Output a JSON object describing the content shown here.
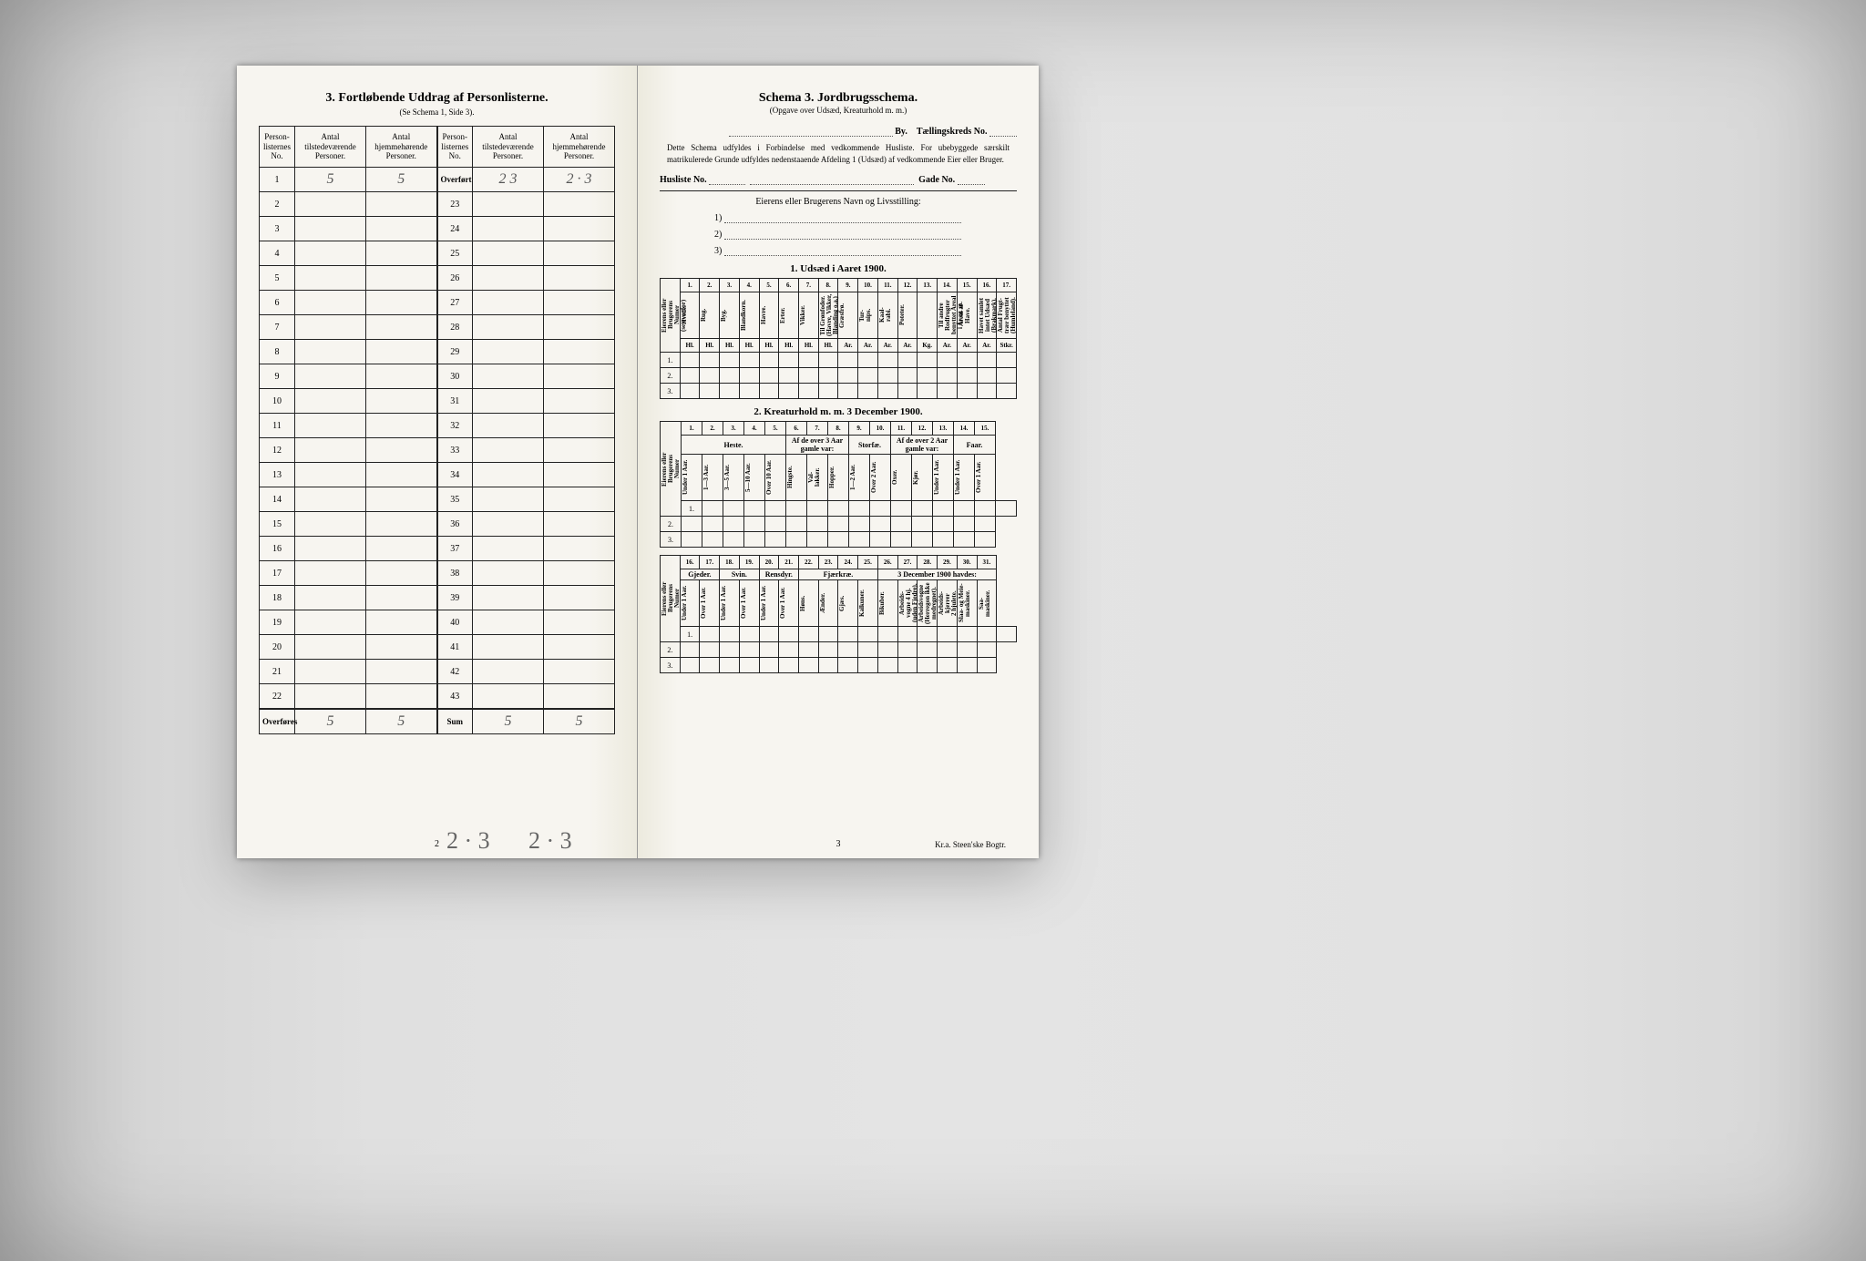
{
  "colors": {
    "paper": "#f7f5f0",
    "ink": "#222222",
    "pencil": "#666666",
    "background": "#c8c8c8"
  },
  "left_page": {
    "title_prefix": "3.",
    "title_main": "Fortløbende Uddrag af Personlisterne.",
    "subtitle": "(Se Schema 1, Side 3).",
    "headers": {
      "col1": "Person-\nlisternes\nNo.",
      "col2": "Antal\ntilstedeværende\nPersoner.",
      "col3": "Antal\nhjemmehørende\nPersoner.",
      "col4": "Person-\nlisternes\nNo.",
      "col5": "Antal\ntilstedeværende\nPersoner.",
      "col6": "Antal\nhjemmehørende\nPersoner."
    },
    "rows_left": [
      {
        "n": "1",
        "v1": "5",
        "v2": "5"
      },
      {
        "n": "2",
        "v1": "",
        "v2": ""
      },
      {
        "n": "3",
        "v1": "",
        "v2": ""
      },
      {
        "n": "4",
        "v1": "",
        "v2": ""
      },
      {
        "n": "5",
        "v1": "",
        "v2": ""
      },
      {
        "n": "6",
        "v1": "",
        "v2": ""
      },
      {
        "n": "7",
        "v1": "",
        "v2": ""
      },
      {
        "n": "8",
        "v1": "",
        "v2": ""
      },
      {
        "n": "9",
        "v1": "",
        "v2": ""
      },
      {
        "n": "10",
        "v1": "",
        "v2": ""
      },
      {
        "n": "11",
        "v1": "",
        "v2": ""
      },
      {
        "n": "12",
        "v1": "",
        "v2": ""
      },
      {
        "n": "13",
        "v1": "",
        "v2": ""
      },
      {
        "n": "14",
        "v1": "",
        "v2": ""
      },
      {
        "n": "15",
        "v1": "",
        "v2": ""
      },
      {
        "n": "16",
        "v1": "",
        "v2": ""
      },
      {
        "n": "17",
        "v1": "",
        "v2": ""
      },
      {
        "n": "18",
        "v1": "",
        "v2": ""
      },
      {
        "n": "19",
        "v1": "",
        "v2": ""
      },
      {
        "n": "20",
        "v1": "",
        "v2": ""
      },
      {
        "n": "21",
        "v1": "",
        "v2": ""
      },
      {
        "n": "22",
        "v1": "",
        "v2": ""
      }
    ],
    "rows_right": [
      {
        "n": "Overført",
        "v1": "2 3",
        "v2": "2 · 3"
      },
      {
        "n": "23",
        "v1": "",
        "v2": ""
      },
      {
        "n": "24",
        "v1": "",
        "v2": ""
      },
      {
        "n": "25",
        "v1": "",
        "v2": ""
      },
      {
        "n": "26",
        "v1": "",
        "v2": ""
      },
      {
        "n": "27",
        "v1": "",
        "v2": ""
      },
      {
        "n": "28",
        "v1": "",
        "v2": ""
      },
      {
        "n": "29",
        "v1": "",
        "v2": ""
      },
      {
        "n": "30",
        "v1": "",
        "v2": ""
      },
      {
        "n": "31",
        "v1": "",
        "v2": ""
      },
      {
        "n": "32",
        "v1": "",
        "v2": ""
      },
      {
        "n": "33",
        "v1": "",
        "v2": ""
      },
      {
        "n": "34",
        "v1": "",
        "v2": ""
      },
      {
        "n": "35",
        "v1": "",
        "v2": ""
      },
      {
        "n": "36",
        "v1": "",
        "v2": ""
      },
      {
        "n": "37",
        "v1": "",
        "v2": ""
      },
      {
        "n": "38",
        "v1": "",
        "v2": ""
      },
      {
        "n": "39",
        "v1": "",
        "v2": ""
      },
      {
        "n": "40",
        "v1": "",
        "v2": ""
      },
      {
        "n": "41",
        "v1": "",
        "v2": ""
      },
      {
        "n": "42",
        "v1": "",
        "v2": ""
      },
      {
        "n": "43",
        "v1": "",
        "v2": ""
      }
    ],
    "footer_left_label": "Overføres",
    "footer_left_v1": "5",
    "footer_left_v2": "5",
    "footer_right_label": "Sum",
    "footer_right_v1": "5",
    "footer_right_v2": "5",
    "margin_notes": {
      "a": "2 · 3",
      "b": "2 · 3"
    },
    "page_number": "2"
  },
  "right_page": {
    "title": "Schema 3.  Jordbrugsschema.",
    "subtitle": "(Opgave over Udsæd, Kreaturhold m. m.)",
    "by_label": "By.",
    "tk_label": "Tællingskreds No.",
    "paragraph": "Dette Schema udfyldes i Forbindelse med vedkommende Husliste. For ubebyggede særskilt matrikulerede Grunde udfyldes nedenstaaende Afdeling 1 (Udsæd) af vedkommende Eier eller Bruger.",
    "husliste_label": "Husliste No.",
    "gade_label": "Gade No.",
    "owner_heading": "Eierens eller Brugerens Navn og Livsstilling:",
    "owner_lines": [
      "1)",
      "2)",
      "3)"
    ],
    "section1_title": "1.  Udsæd i Aaret 1900.",
    "section2_title": "2.  Kreaturhold m. m. 3 December 1900.",
    "section1": {
      "row_stub": "Eierens eller\nBrugerens Numer\n(se ovenfor)",
      "col_nums": [
        "1.",
        "2.",
        "3.",
        "4.",
        "5.",
        "6.",
        "7.",
        "8.",
        "9.",
        "10.",
        "11.",
        "12.",
        "13.",
        "14.",
        "15.",
        "16.",
        "17."
      ],
      "cols": [
        "Hvede.",
        "Rug.",
        "Byg.",
        "Blandkorn.",
        "Havre.",
        "Erter.",
        "Vikker.",
        "Til Grønfoder.\n(Havre, Vikker,\nBlanding o.a.)",
        "Græsfrø.",
        "Tur-\nnips.",
        "Kaal-\nrabi.",
        "Poteter.",
        "",
        "Til andre Rodfrugter\nbenyttet Areal\ni Ar m. m.",
        "Areal af\nHave.",
        "Havet samlet\nintet Udsæd\n(Brakmark).",
        "Antal Frugt-\ntrær benyttet\n(Humleland)."
      ],
      "col12_label": "Andre Rodfrug-\nter.",
      "units": [
        "Hl.",
        "Hl.",
        "Hl.",
        "Hl.",
        "Hl.",
        "Hl.",
        "Hl.",
        "Hl.",
        "Ar.",
        "Ar.",
        "Ar.",
        "Ar.",
        "Kg.",
        "Ar.",
        "Ar.",
        "Ar.",
        "Stkr."
      ],
      "rows": [
        "1.",
        "2.",
        "3."
      ]
    },
    "section2a": {
      "row_stub": "Eierens eller\nBrugerens Numer",
      "col_nums": [
        "1.",
        "2.",
        "3.",
        "4.",
        "5.",
        "6.",
        "7.",
        "8.",
        "9.",
        "10.",
        "11.",
        "12.",
        "13.",
        "14.",
        "15."
      ],
      "group_heste": "Heste.",
      "group_afde": "Af de over 3 Aar\ngamle var:",
      "group_storfae": "Storfæ.",
      "group_afde2": "Af de over 2 Aar\ngamle var:",
      "group_faar": "Faar.",
      "cols": [
        "Under 1 Aar.",
        "1—3 Aar.",
        "3—5 Aar.",
        "5—10 Aar.",
        "Over 10 Aar.",
        "Hingste.",
        "Val-\nlakker.",
        "Hopper.",
        "1—2 Aar.",
        "Over 2 Aar.",
        "Oxer.",
        "Kjør.",
        "Under 1 Aar.",
        "Under 1 Aar.",
        "Over 1 Aar."
      ],
      "rows": [
        "1.",
        "2.",
        "3."
      ]
    },
    "section2b": {
      "row_stub": "Eierens eller\nBrugerens Numer",
      "col_nums": [
        "16.",
        "17.",
        "18.",
        "19.",
        "20.",
        "21.",
        "22.",
        "23.",
        "24.",
        "25.",
        "26.",
        "27.",
        "28.",
        "29.",
        "30.",
        "31."
      ],
      "group_gjeder": "Gjeder.",
      "group_svin": "Svin.",
      "group_rensdyr": "Rensdyr.",
      "group_fjaerkrae": "Fjærkræ.",
      "group_havdes": "3 December 1900 havdes:",
      "cols": [
        "Under 1 Aar.",
        "Over 1 Aar.",
        "Under 1 Aar.",
        "Over 1 Aar.",
        "Under 1 Aar.",
        "Over 1 Aar.",
        "Høns.",
        "Ænder.",
        "Gjæs.",
        "Kalkuner.",
        "Bikuber.",
        "Arbeids-\nvogne 4 hj.\n(uden Fjedre).",
        "Arbeidsvogne\n(Herregon ikke\nmedregnet).",
        "Arbeids-\nkjerrer\n2 hjulete.",
        "Slaa- og Meie-\nmaskiner.",
        "Saa-\nmaskiner."
      ],
      "rows": [
        "1.",
        "2.",
        "3."
      ]
    },
    "page_number": "3",
    "printer": "Kr.a.  Steen'ske Bogtr."
  }
}
